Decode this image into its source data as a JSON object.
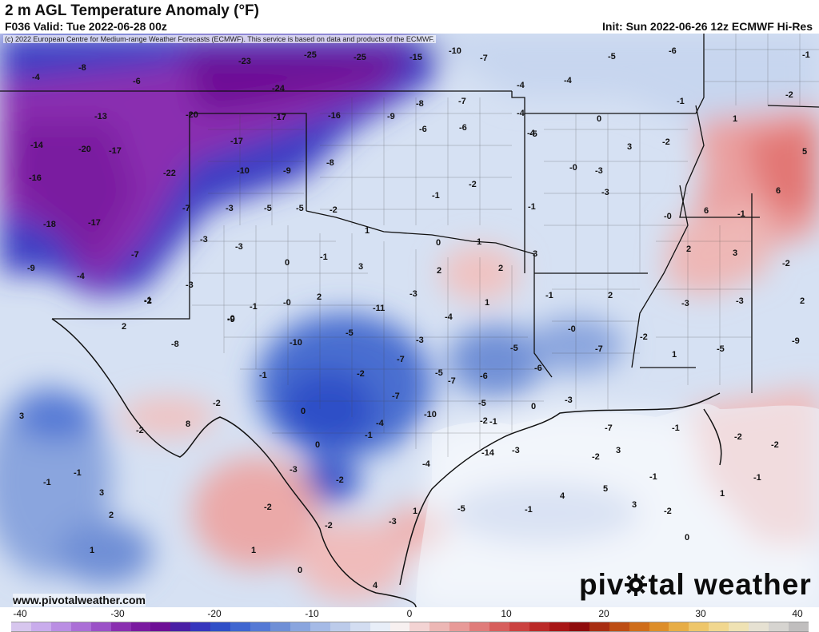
{
  "header": {
    "title": "2 m AGL Temperature Anomaly (°F)",
    "valid": "F036 Valid: Tue 2022-06-28 00z",
    "init": "Init: Sun 2022-06-26 12z ECMWF Hi-Res"
  },
  "map": {
    "copyright": "(c) 2022 European Centre for Medium-range Weather Forecasts (ECMWF). This service is based on data and products of the ECMWF.",
    "website": "www.pivotalweather.com",
    "logo_pre": "piv",
    "logo_post": "tal weather",
    "values": [
      "-4",
      "-8",
      "-6",
      "-23",
      "-25",
      "-25",
      "-15",
      "-10",
      "-7",
      "-5",
      "-6",
      "-4",
      "-1",
      "-24",
      "-13",
      "-20",
      "-17",
      "-16",
      "-9",
      "-8",
      "-7",
      "-4",
      "-4",
      "-2",
      "-14",
      "-20",
      "-17",
      "-22",
      "-17",
      "-10",
      "-9",
      "-8",
      "-6",
      "-6",
      "-4",
      "-5",
      "-1",
      "0",
      "-2",
      "1",
      "5",
      "-16",
      "-18",
      "-17",
      "-7",
      "-3",
      "-5",
      "-5",
      "-2",
      "-3",
      "-3",
      "-2",
      "1",
      "-1",
      "0",
      "-1",
      "-2",
      "-1",
      "-0",
      "6",
      "-9",
      "-7",
      "-3",
      "-0",
      "-1",
      "2",
      "0",
      "1",
      "2",
      "3",
      "-0",
      "3",
      "6",
      "-1",
      "-3",
      "-3",
      "2",
      "3",
      "2",
      "-2",
      "-4",
      "-1",
      "-0",
      "1",
      "2",
      "-1",
      "-3",
      "-11",
      "3",
      "2",
      "-3",
      "-3",
      "2",
      "-8",
      "-2",
      "-10",
      "-9",
      "-4",
      "-0",
      "-7",
      "-3",
      "-5",
      "-6",
      "-2",
      "1",
      "-5",
      "-9",
      "-1",
      "-2",
      "-7",
      "-7",
      "-7",
      "-6",
      "0",
      "-3",
      "-10",
      "-5",
      "-5",
      "0",
      "-1",
      "-4",
      "-5",
      "-2",
      "-7",
      "-1",
      "-2",
      "8",
      "3",
      "0",
      "-4",
      "-3",
      "-2",
      "-14",
      "-3",
      "-1",
      "-1",
      "-1",
      "3",
      "2",
      "1",
      "-3",
      "1",
      "-5",
      "-1",
      "4",
      "5",
      "3",
      "-1",
      "-2",
      "0",
      "-2",
      "3",
      "-2",
      "-1",
      "1",
      "-2",
      "-2",
      "-2",
      "1",
      "0",
      "4"
    ],
    "colors": {
      "deep_purple": "#7a1aa0",
      "purple": "#8a2fb0",
      "blue": "#2f4fc7",
      "mid_blue": "#6f8fd6",
      "light_blue": "#b9ccec",
      "pale": "#e4ebf6",
      "pink": "#f0b9b9",
      "red": "#e3706e"
    }
  },
  "colorbar": {
    "ticks": [
      "-40",
      "-30",
      "-20",
      "-10",
      "0",
      "10",
      "20",
      "30",
      "40"
    ],
    "colors": [
      "#d7c6ee",
      "#c9acec",
      "#ba8ee3",
      "#ab6fd6",
      "#9b51c7",
      "#8a2fb0",
      "#7a1aa0",
      "#6e0f96",
      "#4a1fa5",
      "#3636bd",
      "#2f4fc7",
      "#3f66d0",
      "#5579d5",
      "#6f8fd6",
      "#8aa5de",
      "#a5baE6",
      "#bccbea",
      "#d3ddf1",
      "#e8eef8",
      "#f7f0f0",
      "#f3d3d3",
      "#edb7b5",
      "#e89a98",
      "#e07c7a",
      "#d75e5c",
      "#cb4240",
      "#bb2a28",
      "#a81616",
      "#8f0c0c",
      "#a82e12",
      "#bd4d14",
      "#cf6d1a",
      "#dd8e2a",
      "#e7ad46",
      "#eec66a",
      "#f1d78f",
      "#efe2b3",
      "#e6e1d2",
      "#d6d4d0",
      "#c0bebe"
    ]
  }
}
